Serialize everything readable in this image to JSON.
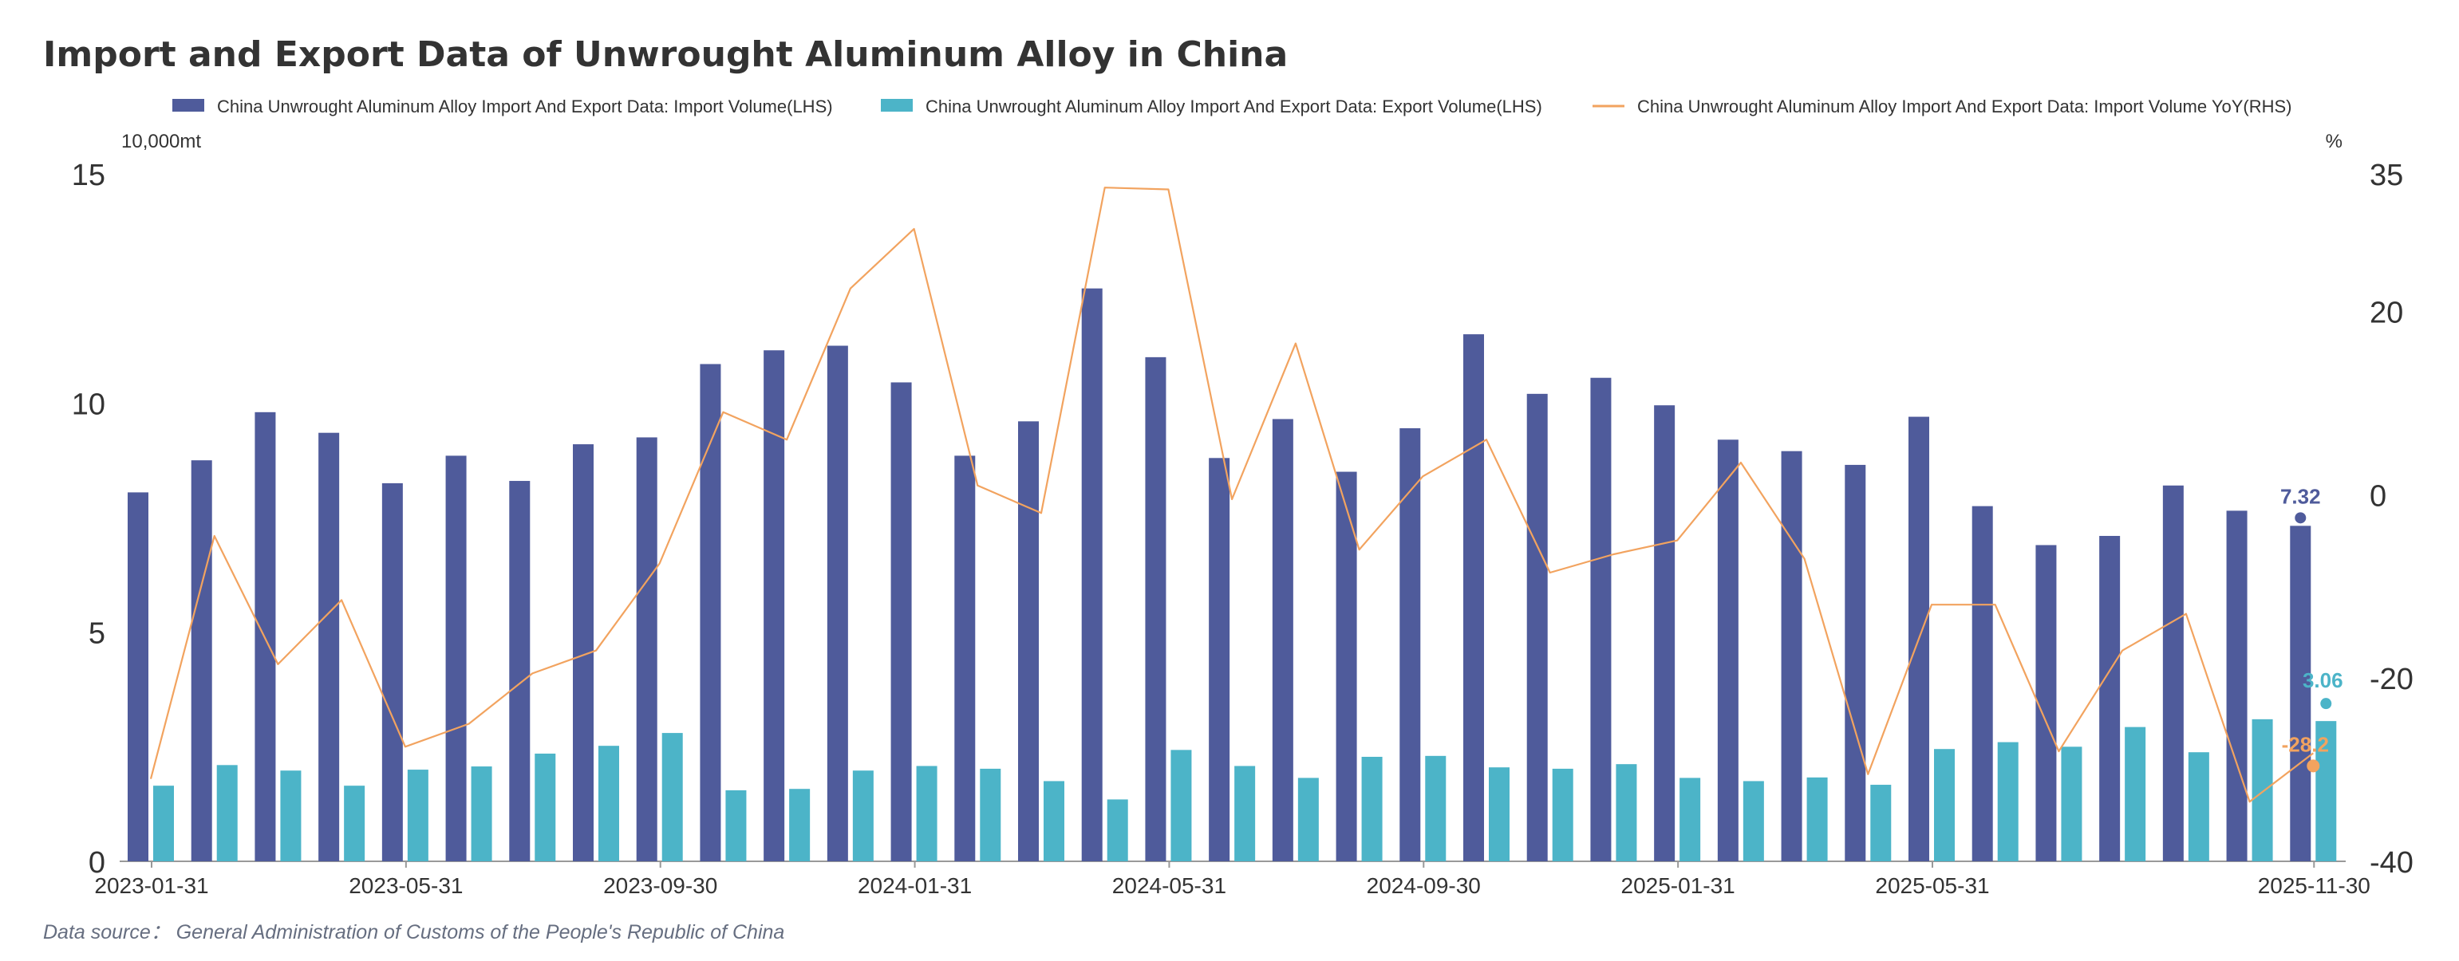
{
  "colors": {
    "import_bar": "#4f5b9b",
    "export_bar": "#4cb4c8",
    "yoy_line": "#f2a35f",
    "axis": "#333333",
    "title": "#333333",
    "source": "#666e80"
  },
  "chart_data": {
    "type": "bar",
    "title": "Import and Export Data of Unwrought Aluminum Alloy in China",
    "left_unit": "10,000mt",
    "right_unit": "%",
    "source_prefix": "Data source：",
    "source": "General Administration of Customs of the People's Republic of China",
    "ylim_left": [
      0,
      15
    ],
    "ylim_right": [
      -40,
      35
    ],
    "yticks_left": [
      "0",
      "5",
      "10",
      "15"
    ],
    "yticks_right": [
      "-40",
      "-20",
      "0",
      "20",
      "35"
    ],
    "yticks_left_values": [
      0,
      5,
      10,
      15
    ],
    "yticks_right_values": [
      -40,
      -20,
      0,
      20,
      35
    ],
    "categories": [
      "2023-01-31",
      "2023-03-31",
      "2023-04-30",
      "2023-05-31",
      "2023-06-30",
      "2023-07-31",
      "2023-08-31",
      "2023-09-30",
      "2023-10-31",
      "2023-11-30",
      "2023-12-31",
      "2024-01-31",
      "2024-03-31",
      "2024-04-30",
      "2024-05-31",
      "2024-06-30",
      "2024-07-31",
      "2024-08-31",
      "2024-09-30",
      "2024-10-31",
      "2024-11-30",
      "2024-12-31",
      "2025-01-31",
      "2025-03-31",
      "2025-04-30",
      "2025-05-31",
      "2025-06-30",
      "2025-07-31",
      "2025-08-31",
      "2025-09-30",
      "2025-10-31",
      "2025-11-30",
      "2025-12-31",
      "2026-01-31",
      "2026-02-28"
    ],
    "x_tick_labels": [
      {
        "index": 0,
        "label": "2023-01-31"
      },
      {
        "index": 4,
        "label": "2023-05-31"
      },
      {
        "index": 8,
        "label": "2023-09-30"
      },
      {
        "index": 12,
        "label": "2024-01-31"
      },
      {
        "index": 16,
        "label": "2024-05-31"
      },
      {
        "index": 20,
        "label": "2024-09-30"
      },
      {
        "index": 24,
        "label": "2025-01-31"
      },
      {
        "index": 28,
        "label": "2025-05-31"
      },
      {
        "index": 34,
        "label": "2025-11-30"
      }
    ],
    "series": [
      {
        "name": "China Unwrought Aluminum Alloy Import And Export Data: Import Volume(LHS)",
        "type": "bar",
        "axis": "left",
        "values": [
          8.05,
          8.75,
          9.8,
          9.35,
          8.25,
          8.85,
          8.3,
          9.1,
          9.25,
          10.85,
          11.15,
          11.25,
          10.45,
          8.85,
          9.6,
          12.5,
          11.0,
          8.8,
          9.65,
          8.5,
          9.45,
          11.5,
          10.2,
          10.55,
          9.95,
          9.2,
          8.95,
          8.65,
          9.7,
          7.75,
          6.9,
          7.1,
          8.2,
          7.65,
          7.32
        ]
      },
      {
        "name": "China Unwrought Aluminum Alloy Import And Export Data: Export Volume(LHS)",
        "type": "bar",
        "axis": "left",
        "values": [
          1.65,
          2.1,
          1.98,
          1.65,
          2.0,
          2.07,
          2.35,
          2.52,
          2.8,
          1.55,
          1.58,
          1.98,
          2.08,
          2.02,
          1.75,
          1.35,
          2.43,
          2.08,
          1.82,
          2.28,
          2.3,
          2.05,
          2.02,
          2.12,
          1.82,
          1.75,
          1.83,
          1.67,
          2.45,
          2.6,
          2.5,
          2.93,
          2.38,
          3.1,
          3.06
        ]
      },
      {
        "name": "China Unwrought Aluminum Alloy Import And Export Data: Import Volume YoY(RHS)",
        "type": "line",
        "axis": "right",
        "values": [
          -31,
          -4.5,
          -18.5,
          -11.5,
          -27.5,
          -25,
          -19.5,
          -17,
          -7.5,
          9,
          6,
          22.5,
          29,
          1,
          -2,
          33.5,
          33.3,
          -0.5,
          16.5,
          -6,
          2,
          6,
          -8.5,
          -6.5,
          -5,
          3.5,
          -7,
          -30.5,
          -12,
          -12,
          -28,
          -17,
          -13,
          -33.5,
          -28.2
        ]
      }
    ],
    "end_labels": {
      "import": "7.32",
      "export": "3.06",
      "yoy": "-28.2"
    }
  }
}
